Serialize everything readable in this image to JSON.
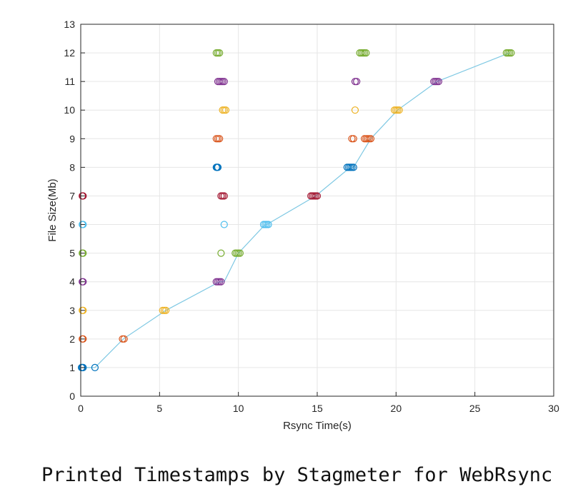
{
  "caption": "Printed Timestamps by Stagmeter for WebRsync",
  "chart_data": {
    "type": "scatter",
    "xlabel": "Rsync Time(s)",
    "ylabel": "File Size(Mb)",
    "xlim": [
      0,
      30
    ],
    "ylim": [
      0,
      13
    ],
    "xticks": [
      0,
      5,
      10,
      15,
      20,
      25,
      30
    ],
    "yticks": [
      0,
      1,
      2,
      3,
      4,
      5,
      6,
      7,
      8,
      9,
      10,
      11,
      12,
      13
    ],
    "grid": true,
    "marker": "circle",
    "connecting_line": {
      "color": "#7ec8e3",
      "x": [
        0.1,
        0.9,
        2.7,
        5.4,
        8.8,
        9.1,
        10.0,
        11.7,
        11.8,
        14.9,
        17.1,
        17.3,
        18.4,
        20.1,
        22.6,
        27.2
      ],
      "y": [
        1,
        1,
        2,
        3,
        4,
        4,
        5,
        6,
        6,
        7,
        8,
        8,
        9,
        10,
        11,
        12
      ]
    },
    "series": [
      {
        "color": "#0072bd",
        "x": [
          0.05,
          0.1,
          0.15,
          0.9,
          8.6,
          8.65,
          8.7,
          16.9,
          17.0,
          17.1,
          17.2,
          17.3
        ],
        "y": [
          1,
          1,
          1,
          1,
          8,
          8,
          8,
          8,
          8,
          8,
          8,
          8
        ]
      },
      {
        "color": "#d95319",
        "x": [
          0.1,
          0.15,
          2.65,
          2.75,
          8.6,
          8.7,
          8.8,
          17.2,
          17.3,
          18.0,
          18.1,
          18.2,
          18.3,
          18.4
        ],
        "y": [
          2,
          2,
          2,
          2,
          9,
          9,
          9,
          9,
          9,
          9,
          9,
          9,
          9,
          9
        ]
      },
      {
        "color": "#edb120",
        "x": [
          0.1,
          0.15,
          5.2,
          5.3,
          5.4,
          9.0,
          9.1,
          9.2,
          17.4,
          19.9,
          20.0,
          20.1,
          20.2
        ],
        "y": [
          3,
          3,
          3,
          3,
          3,
          10,
          10,
          10,
          10,
          10,
          10,
          10,
          10
        ]
      },
      {
        "color": "#7e2f8e",
        "x": [
          0.1,
          0.15,
          8.6,
          8.7,
          8.8,
          8.9,
          8.7,
          8.8,
          8.9,
          9.0,
          9.1,
          17.4,
          17.5,
          22.4,
          22.5,
          22.6,
          22.7
        ],
        "y": [
          4,
          4,
          4,
          4,
          4,
          4,
          11,
          11,
          11,
          11,
          11,
          11,
          11,
          11,
          11,
          11,
          11
        ]
      },
      {
        "color": "#77ac30",
        "x": [
          0.1,
          0.15,
          8.9,
          9.8,
          9.9,
          10.0,
          10.1,
          8.6,
          8.7,
          8.8,
          17.7,
          17.8,
          17.9,
          18.0,
          18.1,
          27.0,
          27.1,
          27.2,
          27.3
        ],
        "y": [
          5,
          5,
          5,
          5,
          5,
          5,
          5,
          12,
          12,
          12,
          12,
          12,
          12,
          12,
          12,
          12,
          12,
          12,
          12
        ]
      },
      {
        "color": "#4dbeee",
        "x": [
          0.1,
          0.15,
          9.1,
          11.6,
          11.7,
          11.8,
          11.9
        ],
        "y": [
          6,
          6,
          6,
          6,
          6,
          6,
          6
        ]
      },
      {
        "color": "#a2142f",
        "x": [
          0.1,
          0.15,
          8.9,
          9.0,
          9.1,
          14.6,
          14.7,
          14.8,
          14.9,
          15.0
        ],
        "y": [
          7,
          7,
          7,
          7,
          7,
          7,
          7,
          7,
          7,
          7
        ]
      }
    ]
  }
}
